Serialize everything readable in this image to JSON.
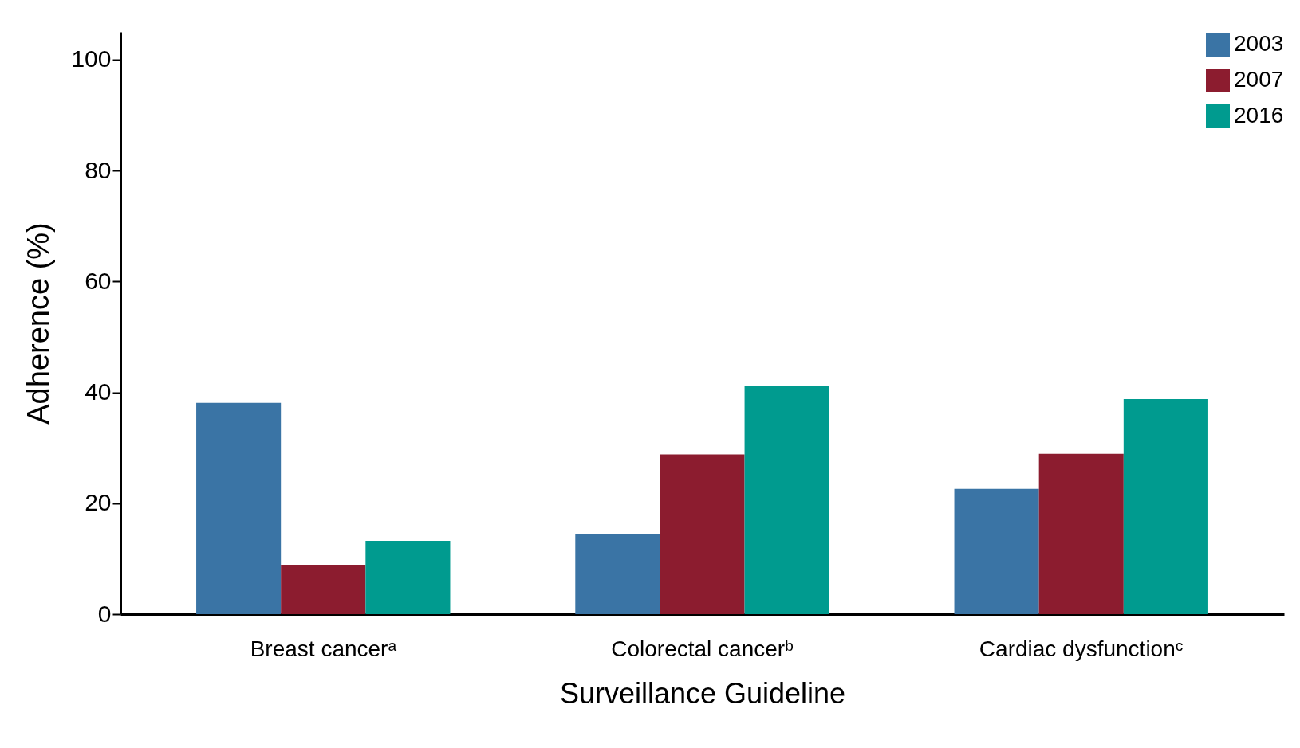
{
  "chart_data": {
    "type": "bar",
    "xlabel": "Surveillance Guideline",
    "ylabel": "Adherence (%)",
    "categories": [
      "Breast cancerᵃ",
      "Colorectal cancerᵇ",
      "Cardiac dysfunctionᶜ"
    ],
    "series": [
      {
        "name": "2003",
        "color": "#3a74a5",
        "values": [
          38.1,
          14.5,
          22.6
        ]
      },
      {
        "name": "2007",
        "color": "#8c1c2f",
        "values": [
          8.9,
          28.8,
          28.9
        ]
      },
      {
        "name": "2016",
        "color": "#009b8f",
        "values": [
          13.2,
          41.2,
          38.8
        ]
      }
    ],
    "ylim": [
      0,
      105
    ],
    "yticks": [
      0,
      20,
      40,
      60,
      80,
      100
    ],
    "grid": false,
    "legend": "top right"
  }
}
